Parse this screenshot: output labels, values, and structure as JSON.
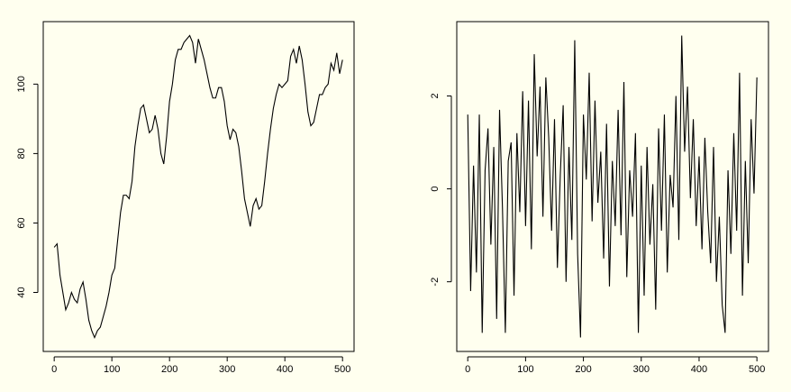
{
  "chart_data": [
    {
      "type": "line",
      "color": "#000000",
      "x": [
        0,
        5,
        10,
        15,
        20,
        25,
        30,
        35,
        40,
        45,
        50,
        55,
        60,
        65,
        70,
        75,
        80,
        85,
        90,
        95,
        100,
        105,
        110,
        115,
        120,
        125,
        130,
        135,
        140,
        145,
        150,
        155,
        160,
        165,
        170,
        175,
        180,
        185,
        190,
        195,
        200,
        205,
        210,
        215,
        220,
        225,
        230,
        235,
        240,
        245,
        250,
        255,
        260,
        265,
        270,
        275,
        280,
        285,
        290,
        295,
        300,
        305,
        310,
        315,
        320,
        325,
        330,
        335,
        340,
        345,
        350,
        355,
        360,
        365,
        370,
        375,
        380,
        385,
        390,
        395,
        400,
        405,
        410,
        415,
        420,
        425,
        430,
        435,
        440,
        445,
        450,
        455,
        460,
        465,
        470,
        475,
        480,
        485,
        490,
        495,
        500
      ],
      "values": [
        53,
        54,
        45,
        40,
        35,
        37,
        40,
        38,
        37,
        41,
        43,
        38,
        32,
        29,
        27,
        29,
        30,
        33,
        36,
        40,
        45,
        47,
        55,
        63,
        68,
        68,
        67,
        72,
        82,
        88,
        93,
        94,
        90,
        86,
        87,
        91,
        87,
        80,
        77,
        85,
        95,
        100,
        107,
        110,
        110,
        112,
        113,
        114,
        112,
        106,
        113,
        110,
        107,
        103,
        99,
        96,
        96,
        99,
        99,
        95,
        88,
        84,
        87,
        86,
        82,
        75,
        67,
        63,
        59,
        65,
        67,
        64,
        65,
        72,
        80,
        87,
        93,
        97,
        100,
        99,
        100,
        101,
        108,
        110,
        106,
        111,
        107,
        100,
        92,
        88,
        89,
        93,
        97,
        97,
        99,
        100,
        106,
        104,
        109,
        103,
        107
      ],
      "xlim": [
        -19,
        520
      ],
      "ylim": [
        23,
        118
      ],
      "xticks": [
        0,
        100,
        200,
        300,
        400,
        500
      ],
      "yticks": [
        40,
        60,
        80,
        100
      ]
    },
    {
      "type": "line",
      "color": "#000000",
      "x": [
        0,
        5,
        10,
        15,
        20,
        25,
        30,
        35,
        40,
        45,
        50,
        55,
        60,
        65,
        70,
        75,
        80,
        85,
        90,
        95,
        100,
        105,
        110,
        115,
        120,
        125,
        130,
        135,
        140,
        145,
        150,
        155,
        160,
        165,
        170,
        175,
        180,
        185,
        190,
        195,
        200,
        205,
        210,
        215,
        220,
        225,
        230,
        235,
        240,
        245,
        250,
        255,
        260,
        265,
        270,
        275,
        280,
        285,
        290,
        295,
        300,
        305,
        310,
        315,
        320,
        325,
        330,
        335,
        340,
        345,
        350,
        355,
        360,
        365,
        370,
        375,
        380,
        385,
        390,
        395,
        400,
        405,
        410,
        415,
        420,
        425,
        430,
        435,
        440,
        445,
        450,
        455,
        460,
        465,
        470,
        475,
        480,
        485,
        490,
        495,
        500
      ],
      "values": [
        1.6,
        -2.2,
        0.5,
        -1.8,
        1.6,
        -3.1,
        0.4,
        1.3,
        -1.2,
        0.9,
        -2.8,
        1.7,
        -0.4,
        -3.1,
        0.6,
        1.0,
        -2.3,
        1.2,
        -0.5,
        2.1,
        -0.8,
        1.9,
        -1.3,
        2.9,
        0.7,
        2.2,
        -0.6,
        2.4,
        1.1,
        -0.9,
        1.5,
        -1.7,
        0.3,
        1.8,
        -2.0,
        0.9,
        -1.1,
        3.2,
        -1.4,
        -3.2,
        1.6,
        0.2,
        2.5,
        -0.7,
        1.9,
        -0.3,
        0.8,
        -1.5,
        1.4,
        -2.1,
        0.6,
        -0.8,
        1.7,
        -1.0,
        2.3,
        -1.9,
        0.4,
        -0.6,
        1.2,
        -3.1,
        0.5,
        -2.3,
        0.9,
        -1.2,
        0.1,
        -2.6,
        1.3,
        -0.9,
        1.6,
        -1.8,
        0.3,
        -0.4,
        2.0,
        -1.1,
        3.3,
        0.8,
        2.2,
        -0.2,
        1.5,
        -0.8,
        0.7,
        -1.3,
        1.1,
        -0.5,
        -1.6,
        0.9,
        -2.0,
        -0.6,
        -2.5,
        -3.1,
        0.4,
        -1.4,
        1.2,
        -0.9,
        2.5,
        -2.3,
        0.6,
        -1.6,
        1.5,
        -0.1,
        2.4
      ],
      "xlim": [
        -19,
        520
      ],
      "ylim": [
        -3.5,
        3.6
      ],
      "xticks": [
        0,
        100,
        200,
        300,
        400,
        500
      ],
      "yticks": [
        -2,
        0,
        2
      ]
    }
  ]
}
